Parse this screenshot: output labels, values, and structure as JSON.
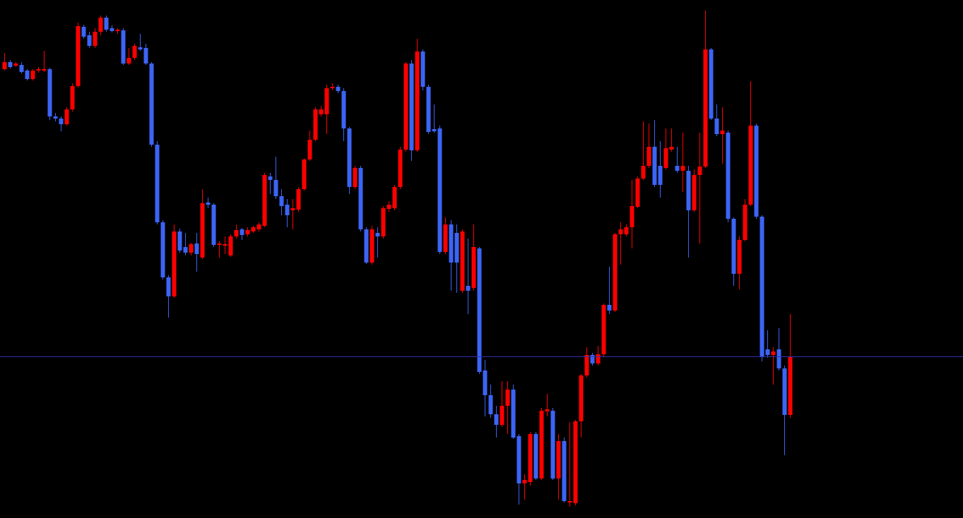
{
  "chart_data": {
    "type": "candlestick",
    "up_color": "#ff0000",
    "down_color": "#3c64f5",
    "ylim": [
      0,
      734
    ],
    "hline": {
      "value": 229,
      "color": "#3030b0"
    },
    "open": [
      636,
      646,
      641,
      642,
      634,
      622,
      634,
      634,
      636,
      569,
      566,
      558,
      579,
      612,
      696,
      684,
      669,
      689,
      709,
      694,
      690,
      691,
      644,
      652,
      667,
      666,
      644,
      529,
      419,
      341,
      314,
      406,
      384,
      376,
      389,
      369,
      447,
      444,
      387,
      386,
      372,
      399,
      409,
      402,
      406,
      409,
      414,
      484,
      479,
      456,
      444,
      436,
      437,
      466,
      508,
      536,
      572,
      572,
      609,
      611,
      605,
      552,
      469,
      496,
      409,
      362,
      404,
      399,
      438,
      439,
      469,
      522,
      644,
      521,
      661,
      611,
      551,
      552,
      377,
      416,
      404,
      322,
      329,
      326,
      382,
      209,
      174,
      147,
      132,
      159,
      182,
      116,
      49,
      51,
      119,
      56,
      151,
      152,
      56,
      109,
      22,
      21,
      137,
      202,
      231,
      219,
      232,
      302,
      294,
      402,
      402,
      412,
      441,
      481,
      499,
      526,
      499,
      496,
      522,
      499,
      492,
      492,
      436,
      486,
      498,
      664,
      566,
      544,
      546,
      424,
      346,
      394,
      444,
      556,
      427,
      239,
      231,
      239,
      212,
      146
    ],
    "high": [
      659,
      649,
      646,
      646,
      636,
      636,
      639,
      662,
      638,
      574,
      569,
      582,
      616,
      702,
      699,
      689,
      694,
      712,
      712,
      698,
      694,
      694,
      666,
      672,
      686,
      672,
      646,
      534,
      422,
      344,
      416,
      410,
      404,
      390,
      404,
      466,
      454,
      446,
      392,
      399,
      402,
      416,
      411,
      412,
      414,
      419,
      489,
      489,
      512,
      466,
      452,
      452,
      469,
      510,
      549,
      582,
      584,
      614,
      616,
      614,
      609,
      554,
      499,
      499,
      412,
      414,
      412,
      442,
      449,
      472,
      526,
      646,
      649,
      679,
      664,
      614,
      586,
      556,
      426,
      422,
      416,
      409,
      396,
      416,
      384,
      224,
      189,
      159,
      194,
      194,
      189,
      119,
      62,
      122,
      122,
      156,
      176,
      156,
      119,
      114,
      136,
      139,
      204,
      242,
      234,
      244,
      304,
      356,
      404,
      419,
      416,
      479,
      484,
      562,
      559,
      564,
      534,
      552,
      552,
      526,
      546,
      499,
      494,
      546,
      719,
      666,
      586,
      582,
      549,
      426,
      399,
      452,
      619,
      559,
      429,
      266,
      242,
      269,
      216,
      289
    ],
    "low": [
      634,
      637,
      639,
      630,
      620,
      620,
      631,
      632,
      564,
      562,
      548,
      556,
      576,
      610,
      679,
      666,
      666,
      684,
      689,
      688,
      686,
      642,
      642,
      649,
      662,
      642,
      526,
      416,
      338,
      284,
      312,
      376,
      372,
      372,
      349,
      367,
      439,
      384,
      369,
      374,
      370,
      396,
      394,
      399,
      404,
      406,
      412,
      459,
      452,
      429,
      412,
      409,
      434,
      464,
      506,
      534,
      569,
      544,
      606,
      602,
      534,
      459,
      466,
      406,
      360,
      359,
      369,
      396,
      434,
      436,
      466,
      519,
      506,
      519,
      606,
      544,
      546,
      374,
      374,
      322,
      319,
      319,
      289,
      322,
      204,
      144,
      142,
      114,
      129,
      119,
      112,
      19,
      26,
      46,
      54,
      54,
      144,
      54,
      26,
      22,
      16,
      18,
      114,
      199,
      216,
      216,
      229,
      289,
      292,
      359,
      399,
      382,
      439,
      479,
      496,
      469,
      454,
      494,
      519,
      489,
      462,
      369,
      434,
      389,
      496,
      564,
      541,
      502,
      419,
      329,
      324,
      392,
      442,
      424,
      222,
      227,
      189,
      209,
      89,
      142
    ],
    "close": [
      646,
      639,
      644,
      632,
      622,
      634,
      636,
      636,
      569,
      566,
      558,
      579,
      612,
      697,
      682,
      669,
      689,
      709,
      692,
      690,
      692,
      644,
      652,
      669,
      664,
      644,
      529,
      419,
      341,
      314,
      406,
      379,
      376,
      388,
      374,
      446,
      444,
      387,
      389,
      388,
      399,
      408,
      401,
      408,
      412,
      416,
      486,
      479,
      456,
      442,
      429,
      439,
      466,
      508,
      536,
      579,
      579,
      609,
      611,
      605,
      552,
      469,
      496,
      409,
      362,
      409,
      399,
      439,
      444,
      469,
      522,
      644,
      521,
      661,
      611,
      547,
      548,
      377,
      416,
      362,
      362,
      406,
      322,
      384,
      207,
      174,
      147,
      132,
      159,
      182,
      114,
      49,
      54,
      119,
      56,
      152,
      154,
      56,
      109,
      24,
      24,
      137,
      202,
      231,
      219,
      232,
      302,
      294,
      402,
      409,
      412,
      442,
      481,
      499,
      526,
      472,
      472,
      524,
      526,
      492,
      499,
      436,
      486,
      498,
      664,
      566,
      544,
      549,
      424,
      346,
      394,
      444,
      556,
      427,
      229,
      231,
      236,
      212,
      146,
      229
    ]
  }
}
